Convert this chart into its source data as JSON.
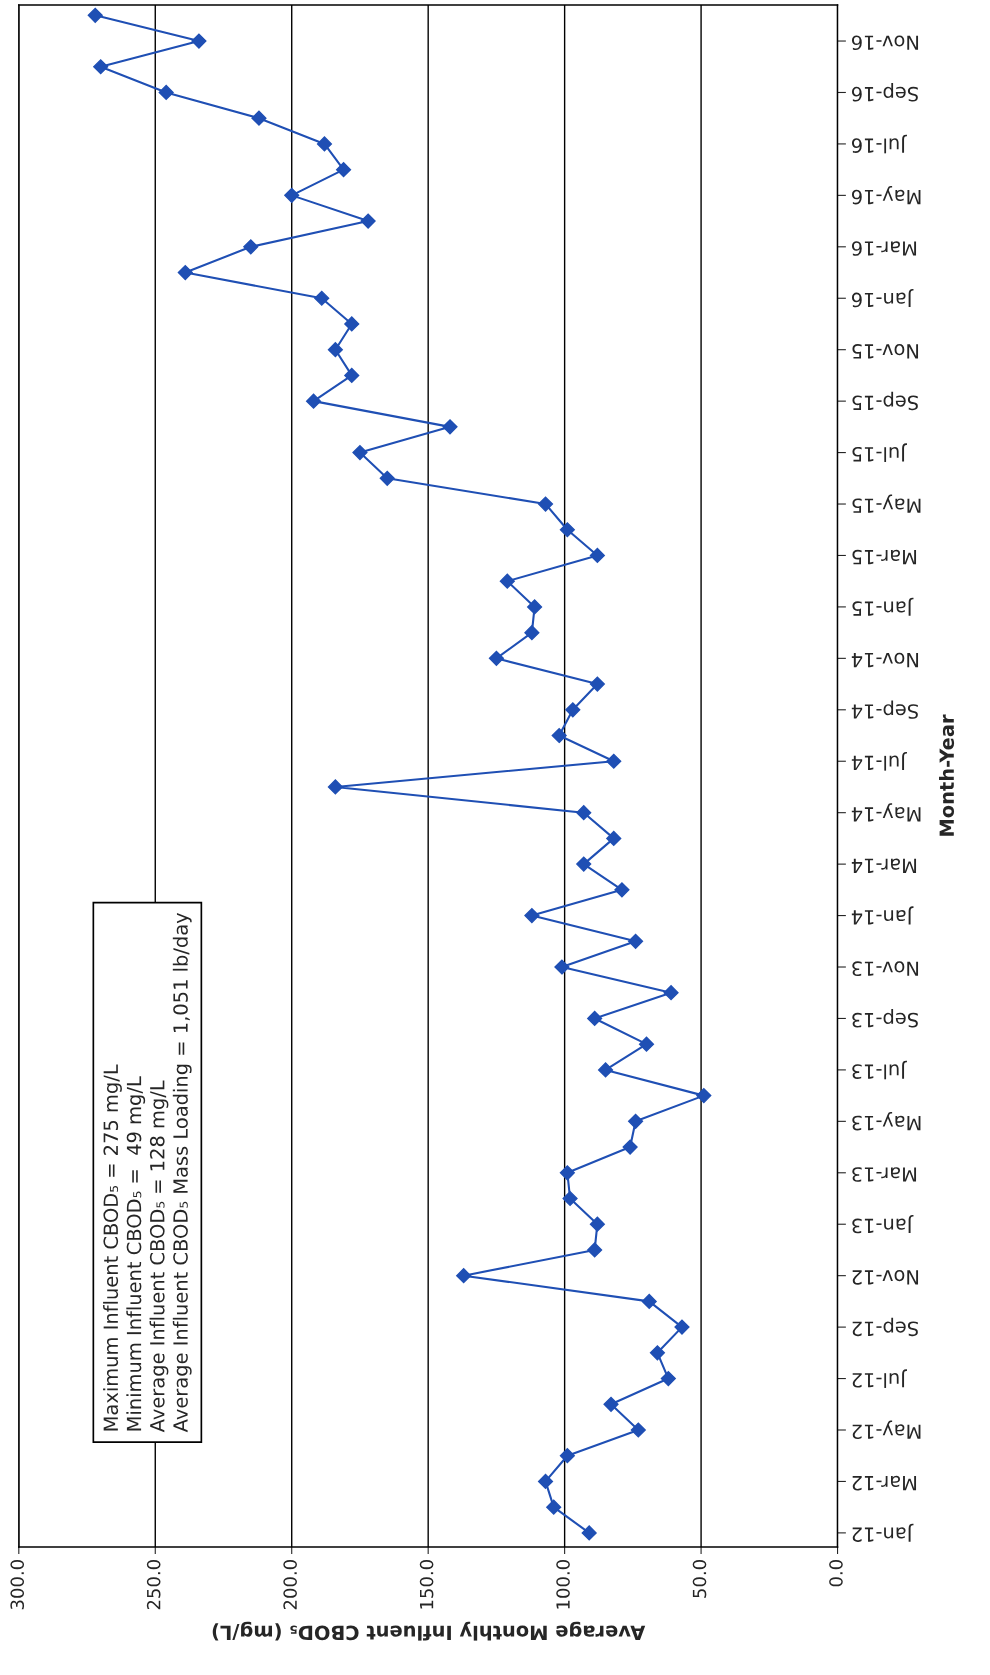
{
  "chart_data": {
    "type": "line",
    "orientation": "horizontal",
    "xlabel": "Average Monthly Influent CBOD₅ (mg/L)",
    "ylabel": "Month-Year",
    "categories": [
      null,
      "Nov-16",
      null,
      "Sep-16",
      null,
      "Jul-16",
      null,
      "May-16",
      null,
      "Mar-16",
      null,
      "Jan-16",
      null,
      "Nov-15",
      null,
      "Sep-15",
      null,
      "Jul-15",
      null,
      "May-15",
      null,
      "Mar-15",
      null,
      "Jan-15",
      null,
      "Nov-14",
      null,
      "Sep-14",
      null,
      "Jul-14",
      null,
      "May-14",
      null,
      "Mar-14",
      null,
      "Jan-14",
      null,
      "Nov-13",
      null,
      "Sep-13",
      null,
      "Jul-13",
      null,
      "May-13",
      null,
      "Mar-13",
      null,
      "Jan-13",
      null,
      "Nov-12",
      null,
      "Sep-12",
      null,
      "Jul-12",
      null,
      "May-12",
      null,
      "Mar-12",
      null,
      "Jan-12"
    ],
    "series": [
      {
        "color": "#1f4fb4",
        "values": [
          272,
          234,
          270,
          246,
          212,
          188,
          181,
          200,
          172,
          215,
          239,
          189,
          178,
          184,
          178,
          192,
          142,
          175,
          165,
          107,
          99,
          88,
          121,
          111,
          112,
          125,
          88,
          97,
          102,
          82,
          184,
          93,
          82,
          93,
          79,
          112,
          74,
          101,
          61,
          89,
          70,
          85,
          49,
          74,
          76,
          99,
          98,
          88,
          89,
          137,
          69,
          57,
          66,
          62,
          83,
          73,
          99,
          107,
          104,
          91
        ]
      }
    ],
    "xlim": [
      300,
      0
    ],
    "xticks": [
      {
        "value": 300,
        "label": "300.0"
      },
      {
        "value": 250,
        "label": "250.0"
      },
      {
        "value": 200,
        "label": "200.0"
      },
      {
        "value": 150,
        "label": "150.0"
      },
      {
        "value": 100,
        "label": "100.0"
      },
      {
        "value": 50,
        "label": "50.0"
      },
      {
        "value": 0,
        "label": "0.0"
      }
    ],
    "grid": "x",
    "marker": "diamond",
    "line_style": "solid",
    "legend": false,
    "annotations": [
      "Maximum Influent CBOD₅ = 275 mg/L",
      "Minimum Influent CBOD₅ =  49 mg/L",
      "Average Influent CBOD₅ = 128 mg/L",
      "Average Influent CBOD₅ Mass Loading = 1,051 lb/day"
    ]
  }
}
